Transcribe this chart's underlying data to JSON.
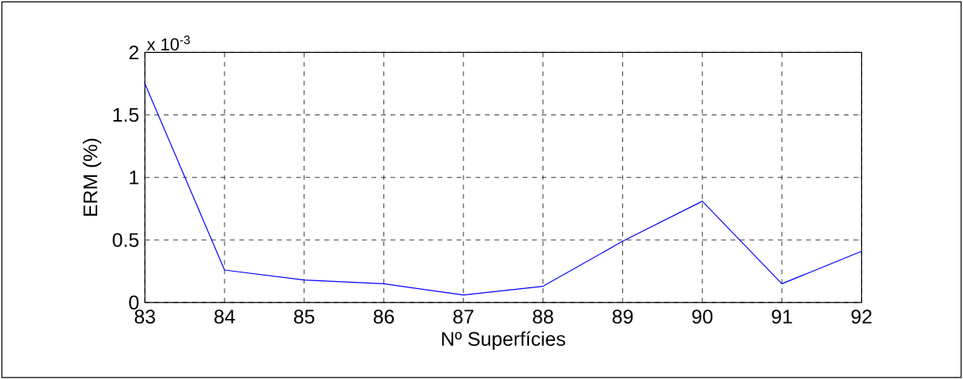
{
  "chart_data": {
    "type": "line",
    "xlabel": "Nº Superfícies",
    "ylabel": "ERM (%)",
    "annotations": [
      "x 10$^{-3}$"
    ],
    "x": [
      83,
      84,
      85,
      86,
      87,
      88,
      89,
      90,
      91,
      92
    ],
    "series": [
      {
        "color": "#0000ff",
        "values": [
          1.75,
          0.26,
          0.18,
          0.15,
          0.06,
          0.13,
          0.49,
          0.81,
          0.15,
          0.41
        ]
      }
    ],
    "xlim": [
      83,
      92
    ],
    "ylim": [
      0,
      2
    ],
    "xticks": [
      83,
      84,
      85,
      86,
      87,
      88,
      89,
      90,
      91,
      92
    ],
    "yticks": [
      0,
      0.5,
      1,
      1.5,
      2
    ],
    "grid": true
  }
}
